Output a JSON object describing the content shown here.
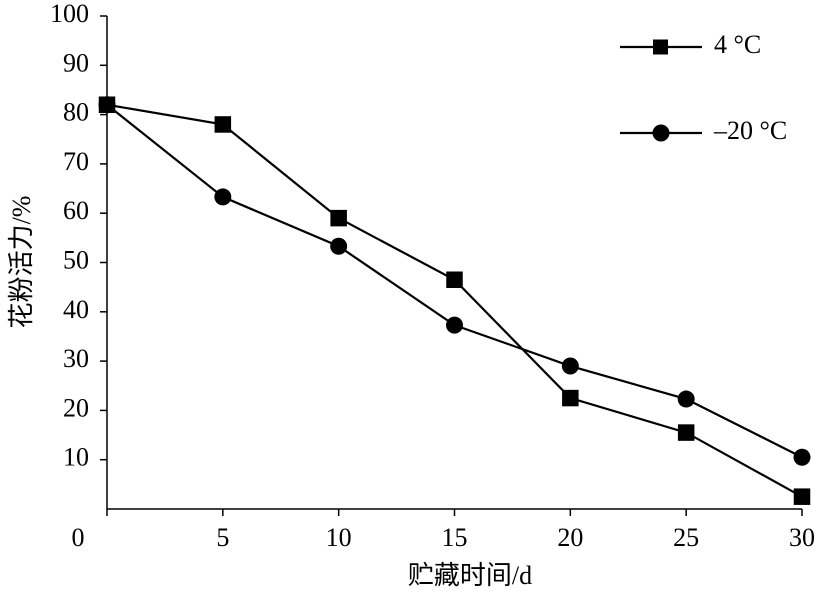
{
  "chart_data": {
    "type": "line",
    "x_label": "贮藏时间/d",
    "y_label": "花粉活力/%",
    "x": [
      0,
      5,
      10,
      15,
      20,
      25,
      30
    ],
    "series": [
      {
        "name": "4 °C",
        "color": "#000000",
        "marker": "square",
        "values": [
          82,
          78,
          59,
          46.5,
          22.5,
          15.5,
          2.5
        ]
      },
      {
        "name": "–20 °C",
        "color": "#000000",
        "marker": "circle",
        "values": [
          82,
          63.3,
          53.3,
          37.3,
          29,
          22.3,
          10.5
        ]
      }
    ],
    "xlim": [
      0,
      30
    ],
    "xticks": [
      0,
      5,
      10,
      15,
      20,
      25,
      30
    ],
    "ylim": [
      0,
      100
    ],
    "yticks": [
      10,
      20,
      30,
      40,
      50,
      60,
      70,
      80,
      90,
      100
    ],
    "grid": false,
    "legend": "upper-right"
  }
}
